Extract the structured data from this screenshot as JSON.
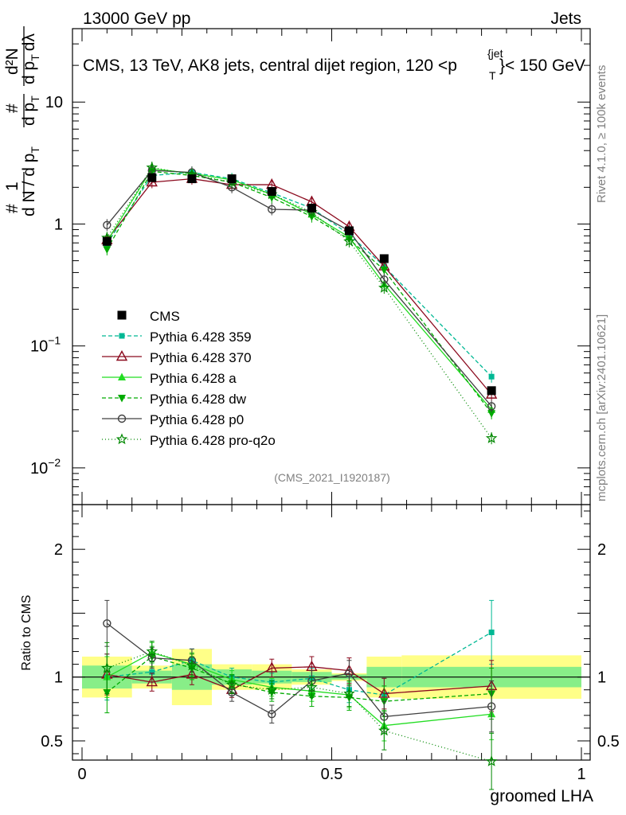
{
  "header": {
    "left_label": "13000 GeV pp",
    "right_label": "Jets",
    "title_main": "CMS, 13 TeV, AK8 jets, central dijet region, 120 <p",
    "title_sup": "{jet",
    "title_sub": "T",
    "title_tail": "}< 150 GeV",
    "side_label_top": "Rivet 4.1.0, ≥ 100k events",
    "side_label_bottom": "mcplots.cern.ch [arXiv:2401.10621]",
    "analysis_id": "(CMS_2021_I1920187)"
  },
  "y_axis_label": {
    "hash": "#",
    "one": "1",
    "den": "d N / d p",
    "den_sub": "T",
    "frac2_num": "#",
    "frac2_den": "d p",
    "frac2_den_sub": "T",
    "frac3_num": "d²N",
    "frac3_den": "d p",
    "frac3_den_sub": "T",
    "frac3_den_tail": "dλ"
  },
  "ratio_ylabel": "Ratio to CMS",
  "xlabel": "groomed LHA",
  "colors": {
    "cms": "#000000",
    "p359": "#00b894",
    "p370": "#8b0a1e",
    "pa": "#22dd22",
    "pdw": "#00aa00",
    "pp0": "#404040",
    "pq2o": "#008800",
    "band_outer": "#ffff88",
    "band_inner": "#88ee88"
  },
  "legend": [
    {
      "key": "cms",
      "label": "CMS"
    },
    {
      "key": "p359",
      "label": "Pythia 6.428 359"
    },
    {
      "key": "p370",
      "label": "Pythia 6.428 370"
    },
    {
      "key": "pa",
      "label": "Pythia 6.428 a"
    },
    {
      "key": "pdw",
      "label": "Pythia 6.428 dw"
    },
    {
      "key": "pp0",
      "label": "Pythia 6.428 p0"
    },
    {
      "key": "pq2o",
      "label": "Pythia 6.428 pro-q2o"
    }
  ],
  "chart_data": {
    "type": "line",
    "title": "CMS, 13 TeV, AK8 jets, central dijet region, 120 < pT(jet) < 150 GeV",
    "xlabel": "groomed LHA",
    "ylabel": "1/dN/dpT dN/dpT dλ",
    "xlim": [
      0,
      1
    ],
    "ylim": [
      0.005,
      40
    ],
    "yscale": "log",
    "ratio_ylim": [
      0.35,
      2.35
    ],
    "ratio_ylabel": "Ratio to CMS",
    "x_ticks": [
      {
        "value": 0,
        "label": "0"
      },
      {
        "value": 0.5,
        "label": "0.5"
      },
      {
        "value": 1,
        "label": "1"
      }
    ],
    "y_ticks": [
      {
        "value": 0.01,
        "base": "10",
        "exp": "−2"
      },
      {
        "value": 0.1,
        "base": "10",
        "exp": "−1"
      },
      {
        "value": 1,
        "base": "1",
        "exp": ""
      },
      {
        "value": 10,
        "base": "10",
        "exp": ""
      }
    ],
    "ratio_ticks": [
      {
        "value": 0.5,
        "label": "0.5"
      },
      {
        "value": 1,
        "label": "1"
      },
      {
        "value": 2,
        "label": "2"
      }
    ],
    "bin_edges": [
      0,
      0.1,
      0.18,
      0.26,
      0.34,
      0.42,
      0.5,
      0.57,
      0.64,
      1.0
    ],
    "x": [
      0.05,
      0.14,
      0.22,
      0.3,
      0.38,
      0.46,
      0.535,
      0.605,
      0.82
    ],
    "cms": {
      "name": "CMS",
      "values": [
        0.72,
        2.4,
        2.35,
        2.35,
        1.85,
        1.35,
        0.88,
        0.52,
        0.043
      ],
      "band_outer": [
        0.16,
        0.09,
        0.22,
        0.1,
        0.1,
        0.06,
        0.03,
        0.16,
        0.17
      ],
      "band_inner": [
        0.09,
        0.05,
        0.1,
        0.06,
        0.05,
        0.04,
        0.02,
        0.08,
        0.08
      ]
    },
    "series": [
      {
        "key": "p359",
        "name": "Pythia 6.428 359",
        "marker": "square",
        "dash": "5,3",
        "values": [
          0.69,
          2.5,
          2.65,
          2.35,
          1.8,
          1.35,
          0.82,
          0.45,
          0.056
        ],
        "ratio": [
          1.0,
          1.04,
          1.13,
          1.0,
          0.96,
          0.99,
          0.9,
          0.86,
          1.35
        ],
        "ratio_err": [
          0.18,
          0.08,
          0.09,
          0.07,
          0.07,
          0.08,
          0.1,
          0.13,
          0.25
        ]
      },
      {
        "key": "p370",
        "name": "Pythia 6.428 370",
        "marker": "open-triangle",
        "dash": "",
        "values": [
          0.74,
          2.2,
          2.35,
          2.1,
          2.1,
          1.52,
          0.95,
          0.45,
          0.04
        ],
        "ratio": [
          1.02,
          0.96,
          1.02,
          0.9,
          1.07,
          1.08,
          1.05,
          0.87,
          0.93
        ],
        "ratio_err": [
          0.16,
          0.07,
          0.08,
          0.06,
          0.07,
          0.08,
          0.1,
          0.12,
          0.2
        ]
      },
      {
        "key": "pa",
        "name": "Pythia 6.428 a",
        "marker": "triangle",
        "dash": "",
        "values": [
          0.72,
          2.85,
          2.6,
          2.3,
          1.75,
          1.2,
          0.78,
          0.32,
          0.03
        ],
        "ratio": [
          1.0,
          1.19,
          1.1,
          0.98,
          0.92,
          0.89,
          0.86,
          0.62,
          0.71
        ],
        "ratio_err": [
          0.16,
          0.08,
          0.09,
          0.07,
          0.07,
          0.08,
          0.1,
          0.12,
          0.2
        ]
      },
      {
        "key": "pdw",
        "name": "Pythia 6.428 dw",
        "marker": "down-triangle",
        "dash": "5,3",
        "values": [
          0.62,
          2.7,
          2.5,
          2.2,
          1.65,
          1.15,
          0.75,
          0.42,
          0.028
        ],
        "ratio": [
          0.88,
          1.16,
          1.07,
          0.95,
          0.88,
          0.85,
          0.84,
          0.81,
          0.87
        ],
        "ratio_err": [
          0.16,
          0.08,
          0.09,
          0.07,
          0.07,
          0.08,
          0.1,
          0.12,
          0.2
        ]
      },
      {
        "key": "pp0",
        "name": "Pythia 6.428 p0",
        "marker": "open-circle",
        "dash": "",
        "values": [
          0.98,
          2.75,
          2.65,
          2.0,
          1.32,
          1.3,
          0.88,
          0.35,
          0.032
        ],
        "ratio": [
          1.42,
          1.15,
          1.13,
          0.88,
          0.71,
          0.97,
          1.03,
          0.69,
          0.77
        ],
        "ratio_err": [
          0.18,
          0.08,
          0.09,
          0.07,
          0.07,
          0.08,
          0.1,
          0.12,
          0.2
        ]
      },
      {
        "key": "pq2o",
        "name": "Pythia 6.428 pro-q2o",
        "marker": "star",
        "dash": "1,3",
        "values": [
          0.77,
          2.9,
          2.55,
          2.2,
          1.75,
          1.25,
          0.72,
          0.3,
          0.0175
        ],
        "ratio": [
          1.07,
          1.2,
          1.09,
          0.94,
          0.9,
          0.92,
          0.87,
          0.58,
          0.34
        ],
        "ratio_err": [
          0.2,
          0.08,
          0.09,
          0.07,
          0.07,
          0.08,
          0.1,
          0.15,
          0.22
        ]
      }
    ]
  }
}
